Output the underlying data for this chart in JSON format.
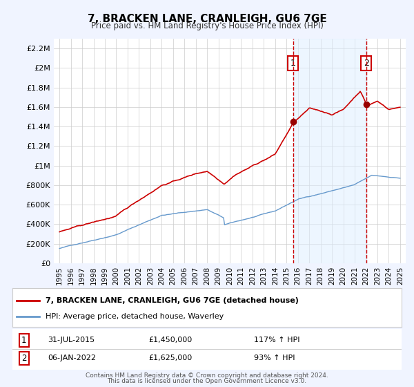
{
  "title": "7, BRACKEN LANE, CRANLEIGH, GU6 7GE",
  "subtitle": "Price paid vs. HM Land Registry's House Price Index (HPI)",
  "ylabel_ticks": [
    "£0",
    "£200K",
    "£400K",
    "£600K",
    "£800K",
    "£1M",
    "£1.2M",
    "£1.4M",
    "£1.6M",
    "£1.8M",
    "£2M",
    "£2.2M"
  ],
  "ytick_values": [
    0,
    200000,
    400000,
    600000,
    800000,
    1000000,
    1200000,
    1400000,
    1600000,
    1800000,
    2000000,
    2200000
  ],
  "ylim": [
    0,
    2300000
  ],
  "xlim_start": 1994.5,
  "xlim_end": 2025.5,
  "background_color": "#f0f4ff",
  "plot_bg_color": "#ffffff",
  "grid_color": "#cccccc",
  "red_line_color": "#cc0000",
  "blue_line_color": "#6699cc",
  "vline_color": "#cc0000",
  "marker_color": "#990000",
  "annotation_box_color": "#ffffff",
  "annotation_box_edge": "#cc0000",
  "legend_label_red": "7, BRACKEN LANE, CRANLEIGH, GU6 7GE (detached house)",
  "legend_label_blue": "HPI: Average price, detached house, Waverley",
  "sale1_label": "1",
  "sale1_date": "31-JUL-2015",
  "sale1_price": "£1,450,000",
  "sale1_hpi": "117% ↑ HPI",
  "sale1_x": 2015.58,
  "sale1_y": 1450000,
  "sale2_label": "2",
  "sale2_date": "06-JAN-2022",
  "sale2_price": "£1,625,000",
  "sale2_hpi": "93% ↑ HPI",
  "sale2_x": 2022.02,
  "sale2_y": 1625000,
  "footnote1": "Contains HM Land Registry data © Crown copyright and database right 2024.",
  "footnote2": "This data is licensed under the Open Government Licence v3.0.",
  "xtick_years": [
    1995,
    1996,
    1997,
    1998,
    1999,
    2000,
    2001,
    2002,
    2003,
    2004,
    2005,
    2006,
    2007,
    2008,
    2009,
    2010,
    2011,
    2012,
    2013,
    2014,
    2015,
    2016,
    2017,
    2018,
    2019,
    2020,
    2021,
    2022,
    2023,
    2024,
    2025
  ]
}
